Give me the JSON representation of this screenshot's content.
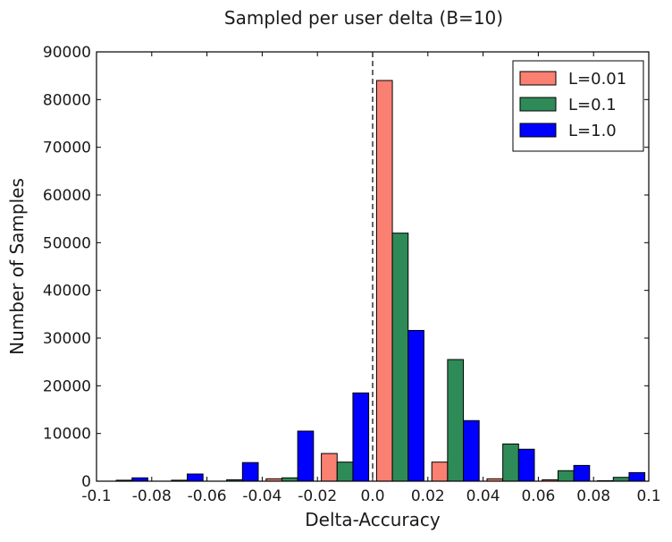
{
  "chart_data": {
    "type": "bar",
    "title": "Sampled per user delta (B=10)",
    "xlabel": "Delta-Accuracy",
    "ylabel": "Number of Samples",
    "xlim": [
      -0.1,
      0.1
    ],
    "ylim": [
      0,
      90000
    ],
    "xticks": [
      "-0.1",
      "-0.08",
      "-0.06",
      "-0.04",
      "-0.02",
      "0.0",
      "0.02",
      "0.04",
      "0.06",
      "0.08",
      "0.1"
    ],
    "yticks": [
      "0",
      "10000",
      "20000",
      "30000",
      "40000",
      "50000",
      "60000",
      "70000",
      "80000",
      "90000"
    ],
    "bin_centers": [
      -0.09,
      -0.07,
      -0.05,
      -0.03,
      -0.01,
      0.01,
      0.03,
      0.05,
      0.07,
      0.09
    ],
    "bin_width": 0.02,
    "reference_line_x": 0.0,
    "grid": false,
    "legend_position": "top-right",
    "series": [
      {
        "name": "L=0.01",
        "color": "#fa8072",
        "values": [
          0,
          0,
          0,
          500,
          5800,
          84000,
          4000,
          500,
          300,
          100
        ]
      },
      {
        "name": "L=0.1",
        "color": "#2e8b57",
        "values": [
          200,
          200,
          300,
          700,
          4000,
          52000,
          25500,
          7800,
          2200,
          800
        ]
      },
      {
        "name": "L=1.0",
        "color": "#0000ff",
        "values": [
          700,
          1500,
          3900,
          10500,
          18500,
          31600,
          12700,
          6700,
          3300,
          1800
        ]
      }
    ]
  }
}
